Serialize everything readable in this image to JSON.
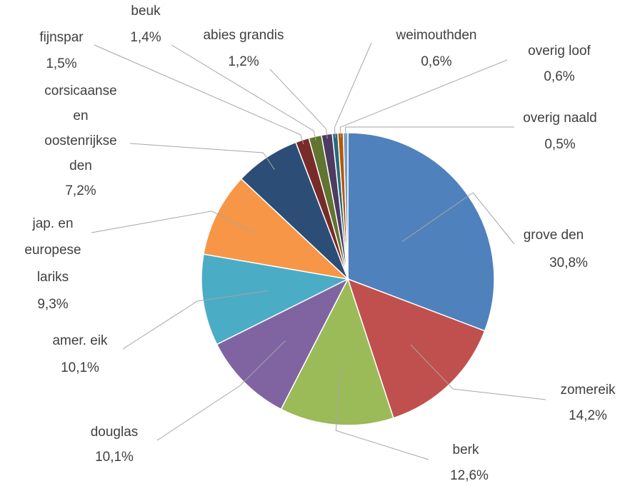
{
  "chart_data": {
    "type": "pie",
    "title": "",
    "legend": "none",
    "slices": [
      {
        "label": "grove den",
        "value": 30.8,
        "display": "30,8%",
        "color": "#4F81BD"
      },
      {
        "label": "zomereik",
        "value": 14.2,
        "display": "14,2%",
        "color": "#C0504D"
      },
      {
        "label": "berk",
        "value": 12.6,
        "display": "12,6%",
        "color": "#9BBB59"
      },
      {
        "label": "douglas",
        "value": 10.1,
        "display": "10,1%",
        "color": "#8064A2"
      },
      {
        "label": "amer. eik",
        "value": 10.1,
        "display": "10,1%",
        "color": "#4BACC6"
      },
      {
        "label": "jap. en europese lariks",
        "value": 9.3,
        "display": "9,3%",
        "color": "#F79646"
      },
      {
        "label": "corsicaanse en oostenrijkse den",
        "value": 7.2,
        "display": "7,2%",
        "color": "#2C4D75"
      },
      {
        "label": "fijnspar",
        "value": 1.5,
        "display": "1,5%",
        "color": "#772C2A"
      },
      {
        "label": "beuk",
        "value": 1.4,
        "display": "1,4%",
        "color": "#5F7530"
      },
      {
        "label": "abies grandis",
        "value": 1.2,
        "display": "1,2%",
        "color": "#4D3B62"
      },
      {
        "label": "weimouthden",
        "value": 0.6,
        "display": "0,6%",
        "color": "#276A7C"
      },
      {
        "label": "overig loof",
        "value": 0.6,
        "display": "0,6%",
        "color": "#B65708"
      },
      {
        "label": "overig naald",
        "value": 0.5,
        "display": "0,5%",
        "color": "#729ACA"
      }
    ]
  }
}
